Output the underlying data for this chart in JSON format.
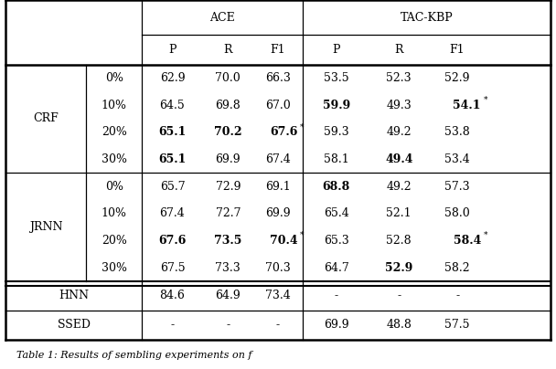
{
  "rows": [
    {
      "group": "CRF",
      "pct": "0%",
      "ace_p": "62.9",
      "ace_r": "70.0",
      "ace_f1": "66.3",
      "tac_p": "53.5",
      "tac_r": "52.3",
      "tac_f1": "52.9",
      "bold": []
    },
    {
      "group": "CRF",
      "pct": "10%",
      "ace_p": "64.5",
      "ace_r": "69.8",
      "ace_f1": "67.0",
      "tac_p": "59.9",
      "tac_r": "49.3",
      "tac_f1": "54.1*",
      "bold": [
        "tac_p",
        "tac_f1"
      ]
    },
    {
      "group": "CRF",
      "pct": "20%",
      "ace_p": "65.1",
      "ace_r": "70.2",
      "ace_f1": "67.6*",
      "tac_p": "59.3",
      "tac_r": "49.2",
      "tac_f1": "53.8",
      "bold": [
        "ace_p",
        "ace_r",
        "ace_f1"
      ]
    },
    {
      "group": "CRF",
      "pct": "30%",
      "ace_p": "65.1",
      "ace_r": "69.9",
      "ace_f1": "67.4",
      "tac_p": "58.1",
      "tac_r": "49.4",
      "tac_f1": "53.4",
      "bold": [
        "ace_p",
        "tac_r"
      ]
    },
    {
      "group": "JRNN",
      "pct": "0%",
      "ace_p": "65.7",
      "ace_r": "72.9",
      "ace_f1": "69.1",
      "tac_p": "68.8",
      "tac_r": "49.2",
      "tac_f1": "57.3",
      "bold": [
        "tac_p"
      ]
    },
    {
      "group": "JRNN",
      "pct": "10%",
      "ace_p": "67.4",
      "ace_r": "72.7",
      "ace_f1": "69.9",
      "tac_p": "65.4",
      "tac_r": "52.1",
      "tac_f1": "58.0",
      "bold": []
    },
    {
      "group": "JRNN",
      "pct": "20%",
      "ace_p": "67.6",
      "ace_r": "73.5",
      "ace_f1": "70.4*",
      "tac_p": "65.3",
      "tac_r": "52.8",
      "tac_f1": "58.4*",
      "bold": [
        "ace_p",
        "ace_r",
        "ace_f1",
        "tac_f1"
      ]
    },
    {
      "group": "JRNN",
      "pct": "30%",
      "ace_p": "67.5",
      "ace_r": "73.3",
      "ace_f1": "70.3",
      "tac_p": "64.7",
      "tac_r": "52.9",
      "tac_f1": "58.2",
      "bold": [
        "tac_r"
      ]
    },
    {
      "group": "HNN",
      "pct": "",
      "ace_p": "84.6",
      "ace_r": "64.9",
      "ace_f1": "73.4",
      "tac_p": "-",
      "tac_r": "-",
      "tac_f1": "-",
      "bold": []
    },
    {
      "group": "SSED",
      "pct": "",
      "ace_p": "-",
      "ace_r": "-",
      "ace_f1": "-",
      "tac_p": "69.9",
      "tac_r": "48.8",
      "tac_f1": "57.5",
      "bold": []
    }
  ],
  "caption": "Table 1: Results of sembling experiments on f",
  "figsize": [
    6.08,
    4.04
  ],
  "dpi": 100,
  "fontsize": 9.0,
  "caption_fontsize": 8.0
}
